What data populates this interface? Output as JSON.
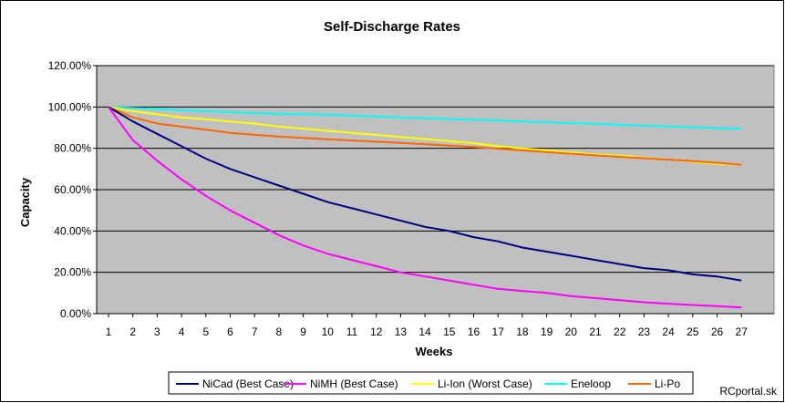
{
  "watermark": "RCportal.sk",
  "chart_data": {
    "type": "line",
    "title": "Self-Discharge Rates",
    "xlabel": "Weeks",
    "ylabel": "Capacity",
    "x": [
      1,
      2,
      3,
      4,
      5,
      6,
      7,
      8,
      9,
      10,
      11,
      12,
      13,
      14,
      15,
      16,
      17,
      18,
      19,
      20,
      21,
      22,
      23,
      24,
      25,
      26,
      27
    ],
    "x_tick_labels": [
      "1",
      "2",
      "3",
      "4",
      "5",
      "6",
      "7",
      "8",
      "9",
      "10",
      "11",
      "12",
      "13",
      "14",
      "15",
      "16",
      "17",
      "18",
      "19",
      "20",
      "21",
      "22",
      "23",
      "24",
      "25",
      "26",
      "27"
    ],
    "ylim": [
      0,
      1.2
    ],
    "y_ticks": [
      0,
      0.2,
      0.4,
      0.6,
      0.8,
      1.0,
      1.2
    ],
    "y_tick_labels": [
      "0.00%",
      "20.00%",
      "40.00%",
      "60.00%",
      "80.00%",
      "100.00%",
      "120.00%"
    ],
    "grid": "horizontal major gridlines",
    "plot_background": "#c0c0c0",
    "legend_position": "bottom",
    "series": [
      {
        "name": "NiCad (Best Case)",
        "color": "#000080",
        "values": [
          1.0,
          0.93,
          0.87,
          0.81,
          0.75,
          0.7,
          0.66,
          0.62,
          0.58,
          0.54,
          0.51,
          0.48,
          0.45,
          0.42,
          0.4,
          0.37,
          0.35,
          0.32,
          0.3,
          0.28,
          0.26,
          0.24,
          0.22,
          0.21,
          0.19,
          0.18,
          0.16
        ]
      },
      {
        "name": "NiMH (Best Case)",
        "color": "#ff00ff",
        "values": [
          1.0,
          0.84,
          0.74,
          0.65,
          0.57,
          0.5,
          0.44,
          0.38,
          0.33,
          0.29,
          0.26,
          0.23,
          0.2,
          0.18,
          0.16,
          0.14,
          0.12,
          0.11,
          0.1,
          0.085,
          0.075,
          0.065,
          0.055,
          0.048,
          0.042,
          0.036,
          0.03
        ]
      },
      {
        "name": "Li-Ion (Worst Case)",
        "color": "#ffff00",
        "values": [
          1.0,
          0.98,
          0.965,
          0.95,
          0.94,
          0.93,
          0.92,
          0.905,
          0.895,
          0.885,
          0.875,
          0.865,
          0.855,
          0.845,
          0.835,
          0.825,
          0.81,
          0.8,
          0.79,
          0.78,
          0.77,
          0.765,
          0.755,
          0.745,
          0.735,
          0.725,
          0.72
        ]
      },
      {
        "name": "Eneloop",
        "color": "#00ffff",
        "values": [
          1.0,
          0.995,
          0.99,
          0.985,
          0.98,
          0.975,
          0.97,
          0.967,
          0.965,
          0.962,
          0.958,
          0.954,
          0.95,
          0.946,
          0.942,
          0.938,
          0.935,
          0.93,
          0.926,
          0.922,
          0.918,
          0.914,
          0.91,
          0.906,
          0.902,
          0.898,
          0.895
        ]
      },
      {
        "name": "Li-Po",
        "color": "#ff6600",
        "values": [
          1.0,
          0.95,
          0.92,
          0.905,
          0.89,
          0.875,
          0.865,
          0.857,
          0.85,
          0.844,
          0.838,
          0.832,
          0.826,
          0.82,
          0.813,
          0.806,
          0.798,
          0.79,
          0.782,
          0.774,
          0.766,
          0.759,
          0.752,
          0.745,
          0.738,
          0.73,
          0.72
        ]
      }
    ]
  }
}
